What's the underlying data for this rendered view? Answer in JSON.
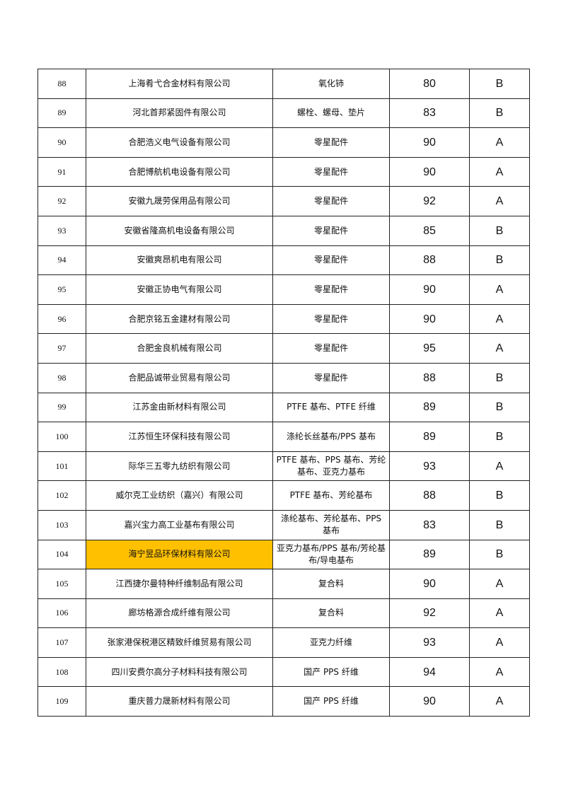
{
  "highlight_color": "#FFC000",
  "rows": [
    {
      "no": "88",
      "company": "上海肴弋合金材料有限公司",
      "product": "氧化铈",
      "score": "80",
      "grade": "B"
    },
    {
      "no": "89",
      "company": "河北首邦紧固件有限公司",
      "product": "螺栓、螺母、垫片",
      "score": "83",
      "grade": "B"
    },
    {
      "no": "90",
      "company": "合肥浩义电气设备有限公司",
      "product": "零星配件",
      "score": "90",
      "grade": "A"
    },
    {
      "no": "91",
      "company": "合肥博航机电设备有限公司",
      "product": "零星配件",
      "score": "90",
      "grade": "A"
    },
    {
      "no": "92",
      "company": "安徽九晟劳保用品有限公司",
      "product": "零星配件",
      "score": "92",
      "grade": "A"
    },
    {
      "no": "93",
      "company": "安徽省隆高机电设备有限公司",
      "product": "零星配件",
      "score": "85",
      "grade": "B"
    },
    {
      "no": "94",
      "company": "安徽爽昂机电有限公司",
      "product": "零星配件",
      "score": "88",
      "grade": "B"
    },
    {
      "no": "95",
      "company": "安徽正协电气有限公司",
      "product": "零星配件",
      "score": "90",
      "grade": "A"
    },
    {
      "no": "96",
      "company": "合肥京铭五金建材有限公司",
      "product": "零星配件",
      "score": "90",
      "grade": "A"
    },
    {
      "no": "97",
      "company": "合肥金良机械有限公司",
      "product": "零星配件",
      "score": "95",
      "grade": "A"
    },
    {
      "no": "98",
      "company": "合肥品诚带业贸易有限公司",
      "product": "零星配件",
      "score": "88",
      "grade": "B"
    },
    {
      "no": "99",
      "company": "江苏金由新材料有限公司",
      "product": "PTFE 基布、PTFE 纤维",
      "score": "89",
      "grade": "B"
    },
    {
      "no": "100",
      "company": "江苏恒生环保科技有限公司",
      "product": "涤纶长丝基布/PPS 基布",
      "score": "89",
      "grade": "B"
    },
    {
      "no": "101",
      "company": "际华三五零九纺织有限公司",
      "product": "PTFE 基布、PPS 基布、芳纶基布、亚克力基布",
      "score": "93",
      "grade": "A"
    },
    {
      "no": "102",
      "company": "威尔克工业纺织（嘉兴）有限公司",
      "product": "PTFE 基布、芳纶基布",
      "score": "88",
      "grade": "B"
    },
    {
      "no": "103",
      "company": "嘉兴宝力高工业基布有限公司",
      "product": "涤纶基布、芳纶基布、PPS 基布",
      "score": "83",
      "grade": "B"
    },
    {
      "no": "104",
      "company": "海宁昱品环保材料有限公司",
      "product": "亚克力基布/PPS 基布/芳纶基布/导电基布",
      "score": "89",
      "grade": "B",
      "highlighted": true
    },
    {
      "no": "105",
      "company": "江西捷尔曼特种纤维制品有限公司",
      "product": "复合料",
      "score": "90",
      "grade": "A"
    },
    {
      "no": "106",
      "company": "廊坊格源合成纤维有限公司",
      "product": "复合料",
      "score": "92",
      "grade": "A"
    },
    {
      "no": "107",
      "company": "张家港保税港区精致纤维贸易有限公司",
      "product": "亚克力纤维",
      "score": "93",
      "grade": "A"
    },
    {
      "no": "108",
      "company": "四川安费尔高分子材料科技有限公司",
      "product": "国产 PPS 纤维",
      "score": "94",
      "grade": "A"
    },
    {
      "no": "109",
      "company": "重庆普力晟新材料有限公司",
      "product": "国产 PPS 纤维",
      "score": "90",
      "grade": "A"
    }
  ]
}
